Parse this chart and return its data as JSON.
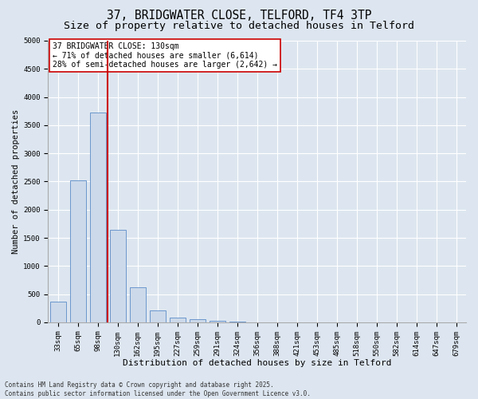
{
  "title": "37, BRIDGWATER CLOSE, TELFORD, TF4 3TP",
  "subtitle": "Size of property relative to detached houses in Telford",
  "xlabel": "Distribution of detached houses by size in Telford",
  "ylabel": "Number of detached properties",
  "categories": [
    "33sqm",
    "65sqm",
    "98sqm",
    "130sqm",
    "162sqm",
    "195sqm",
    "227sqm",
    "259sqm",
    "291sqm",
    "324sqm",
    "356sqm",
    "388sqm",
    "421sqm",
    "453sqm",
    "485sqm",
    "518sqm",
    "550sqm",
    "582sqm",
    "614sqm",
    "647sqm",
    "679sqm"
  ],
  "values": [
    370,
    2520,
    3730,
    1640,
    620,
    210,
    90,
    50,
    20,
    10,
    0,
    0,
    0,
    0,
    0,
    0,
    0,
    0,
    0,
    0,
    0
  ],
  "bar_color": "#ccd9ea",
  "bar_edge_color": "#5b8cc8",
  "vline_x_index": 2.5,
  "vline_color": "#cc0000",
  "annotation_text": "37 BRIDGWATER CLOSE: 130sqm\n← 71% of detached houses are smaller (6,614)\n28% of semi-detached houses are larger (2,642) →",
  "annotation_box_color": "#ffffff",
  "annotation_box_edge": "#cc0000",
  "ylim": [
    0,
    5000
  ],
  "yticks": [
    0,
    500,
    1000,
    1500,
    2000,
    2500,
    3000,
    3500,
    4000,
    4500,
    5000
  ],
  "bg_color": "#dde6f0",
  "plot_bg_color": "#dde6f0",
  "grid_color": "#ffffff",
  "footer": "Contains HM Land Registry data © Crown copyright and database right 2025.\nContains public sector information licensed under the Open Government Licence v3.0.",
  "title_fontsize": 10.5,
  "subtitle_fontsize": 9.5,
  "xlabel_fontsize": 8,
  "ylabel_fontsize": 7.5,
  "tick_fontsize": 6.5,
  "annotation_fontsize": 7,
  "footer_fontsize": 5.5
}
